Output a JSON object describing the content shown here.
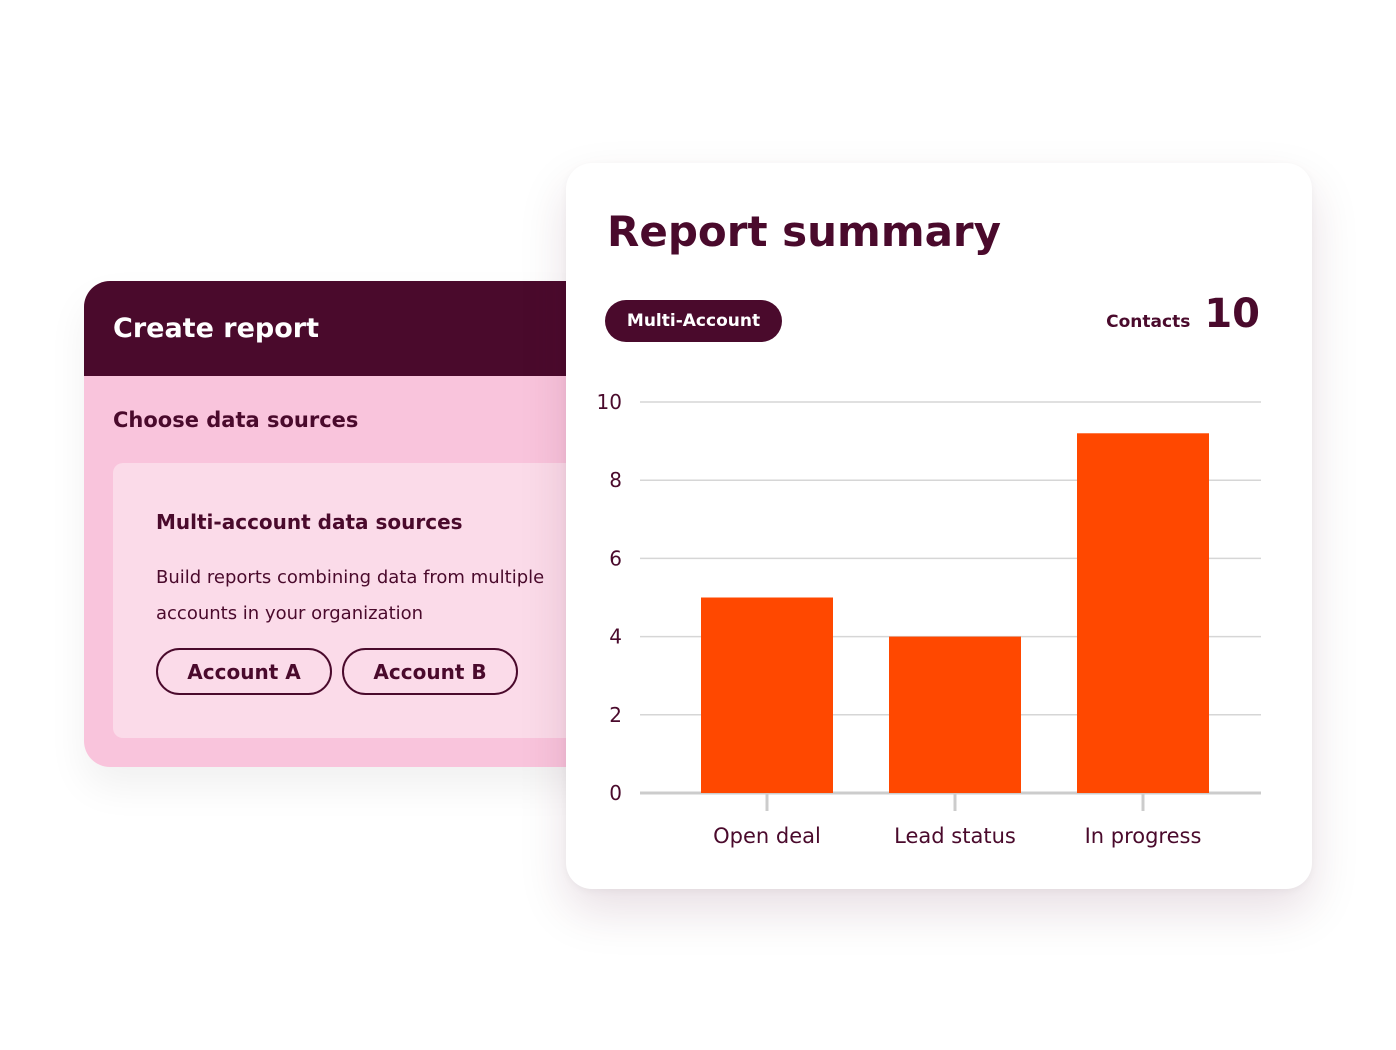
{
  "create_report": {
    "title": "Create report",
    "section_label": "Choose data sources",
    "source": {
      "title": "Multi-account data sources",
      "description": "Build reports combining data from multiple accounts in your organization",
      "accounts": [
        "Account A",
        "Account B"
      ]
    }
  },
  "summary": {
    "title": "Report summary",
    "badge": "Multi-Account",
    "contacts_label": "Contacts",
    "contacts_value": "10"
  },
  "colors": {
    "brand_dark": "#4a0a2c",
    "pink": "#f9c4dc",
    "pink_light": "#fbdbe9",
    "bar": "#ff4800"
  },
  "chart_data": {
    "type": "bar",
    "categories": [
      "Open deal",
      "Lead status",
      "In progress"
    ],
    "values": [
      5,
      4,
      9.2
    ],
    "yticks": [
      0,
      2,
      4,
      6,
      8,
      10
    ],
    "ylim": [
      0,
      10
    ],
    "grid": true
  }
}
